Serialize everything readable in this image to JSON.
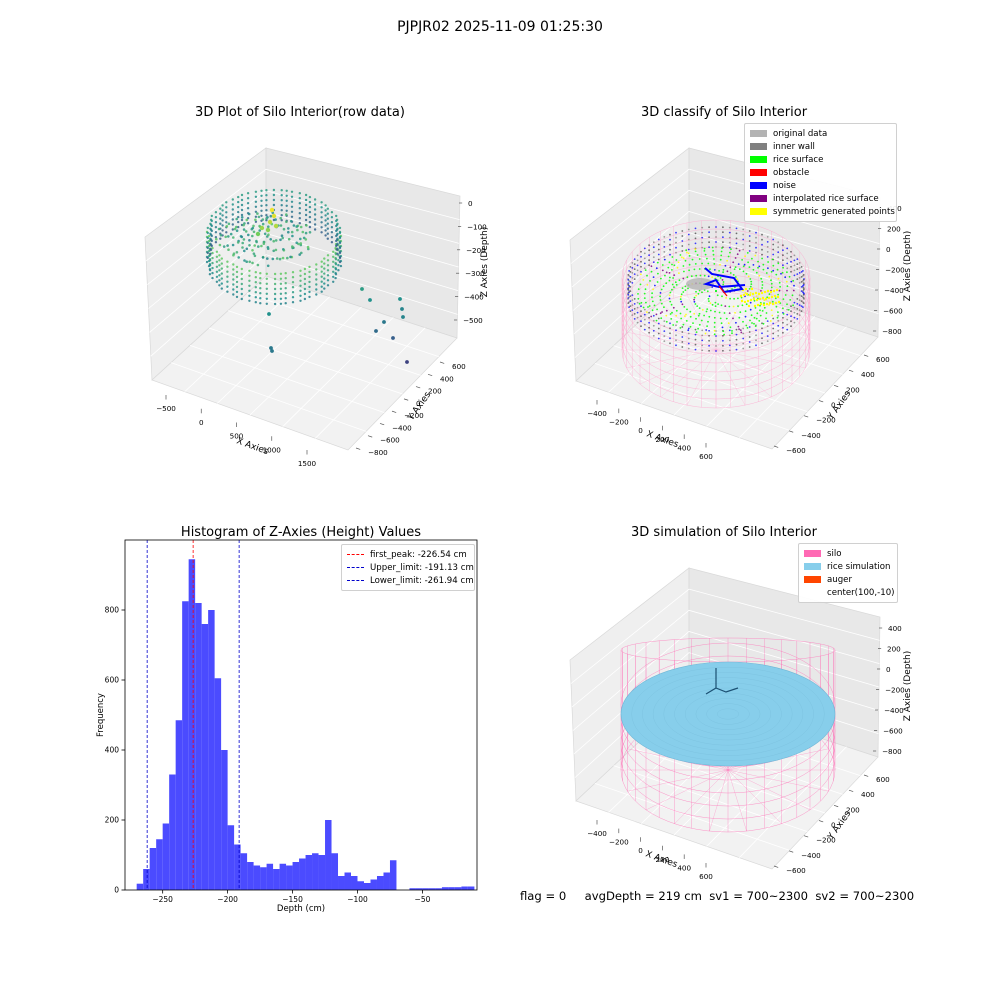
{
  "figure": {
    "suptitle": "PJPJR02 2025-11-09 01:25:30",
    "status": {
      "flag": "flag = 0",
      "avg_depth": "avgDepth = 219 cm",
      "sv1": "sv1 = 700~2300",
      "sv2": "sv2 = 700~2300"
    }
  },
  "colors": {
    "original_data": "#b3b3b3",
    "inner_wall": "#808080",
    "rice_surface": "#00ff00",
    "obstacle": "#ff0000",
    "noise": "#0000ff",
    "interpolated_rice_surface": "#800080",
    "symmetric_generated_points": "#ffff00",
    "silo": "#ff69b4",
    "rice_simulation": "#87ceeb",
    "auger": "#ff4500",
    "histogram_bar": "#4b4bff",
    "first_peak_line": "#ff0000",
    "limit_line": "#0000cc"
  },
  "chart_data": [
    {
      "type": "scatter",
      "subtype": "3d",
      "title": "3D Plot of Silo Interior(row data)",
      "xlabel": "X Axies",
      "ylabel": "Y Axies",
      "zlabel": "Z Axies (Depth)",
      "x_ticks": [
        "−500",
        "0",
        "500",
        "1000",
        "1500"
      ],
      "y_ticks": [
        "600",
        "400",
        "200",
        "0",
        "−200",
        "−400",
        "−600",
        "−800"
      ],
      "z_ticks": [
        "0",
        "−100",
        "−200",
        "−300",
        "−400",
        "−500"
      ],
      "xlim": [
        -700,
        1800
      ],
      "ylim": [
        -850,
        700
      ],
      "zlim": [
        -560,
        20
      ],
      "colormap": "viridis"
    },
    {
      "type": "scatter",
      "subtype": "3d",
      "title": "3D classify of Silo Interior",
      "xlabel": "X Axies",
      "ylabel": "Y Axies",
      "zlabel": "Z Axies (Depth)",
      "x_ticks": [
        "−400",
        "−200",
        "0",
        "200",
        "400",
        "600"
      ],
      "y_ticks": [
        "600",
        "400",
        "200",
        "0",
        "−200",
        "−400",
        "−600"
      ],
      "z_ticks": [
        "400",
        "200",
        "0",
        "−200",
        "−400",
        "−600",
        "−800"
      ],
      "legend": [
        "original data",
        "inner wall",
        "rice surface",
        "obstacle",
        "noise",
        "interpolated rice surface",
        "symmetric generated points"
      ],
      "legend_placement": "top-right"
    },
    {
      "type": "bar",
      "subtype": "histogram",
      "title": "Histogram of Z-Axies (Height) Values",
      "xlabel": "Depth (cm)",
      "ylabel": "Frequency",
      "bin_width": 5,
      "bins_start": [
        -270,
        -265,
        -260,
        -255,
        -250,
        -245,
        -240,
        -235,
        -230,
        -225,
        -220,
        -215,
        -210,
        -205,
        -200,
        -195,
        -190,
        -185,
        -180,
        -175,
        -170,
        -165,
        -160,
        -155,
        -150,
        -145,
        -140,
        -135,
        -130,
        -125,
        -120,
        -115,
        -110,
        -105,
        -100,
        -95,
        -90,
        -85,
        -80,
        -75,
        -70,
        -65,
        -60,
        -55,
        -50,
        -45,
        -40,
        -35,
        -30,
        -25,
        -20,
        -15
      ],
      "values": [
        18,
        60,
        120,
        145,
        190,
        330,
        485,
        825,
        945,
        820,
        760,
        800,
        605,
        400,
        185,
        130,
        105,
        80,
        70,
        65,
        75,
        60,
        75,
        70,
        80,
        90,
        100,
        105,
        100,
        200,
        105,
        40,
        50,
        40,
        25,
        20,
        30,
        40,
        50,
        85,
        0,
        0,
        5,
        5,
        5,
        5,
        5,
        8,
        8,
        8,
        10,
        10
      ],
      "x_ticks": [
        -250,
        -200,
        -150,
        -100,
        -50
      ],
      "y_ticks": [
        0,
        200,
        400,
        600,
        800
      ],
      "xlim": [
        -279,
        -8
      ],
      "ylim": [
        0,
        1000
      ],
      "vlines": [
        {
          "label": "first_peak: -226.54 cm",
          "x": -226.54,
          "color": "#ff0000"
        },
        {
          "label": "Upper_limit: -191.13 cm",
          "x": -191.13,
          "color": "#0000cc"
        },
        {
          "label": "Lower_limit: -261.94 cm",
          "x": -261.94,
          "color": "#0000cc"
        }
      ],
      "legend_placement": "top-right"
    },
    {
      "type": "area",
      "subtype": "3d-surface",
      "title": "3D simulation of Silo Interior",
      "xlabel": "X Axies",
      "ylabel": "Y Axies",
      "zlabel": "Z Axies (Depth)",
      "x_ticks": [
        "−400",
        "−200",
        "0",
        "200",
        "400",
        "600"
      ],
      "y_ticks": [
        "600",
        "400",
        "200",
        "0",
        "−200",
        "−400",
        "−600"
      ],
      "z_ticks": [
        "400",
        "200",
        "0",
        "−200",
        "−400",
        "−600",
        "−800"
      ],
      "legend": [
        "silo",
        "rice simulation",
        "auger",
        "center(100,-10)"
      ],
      "legend_placement": "top-right"
    }
  ]
}
